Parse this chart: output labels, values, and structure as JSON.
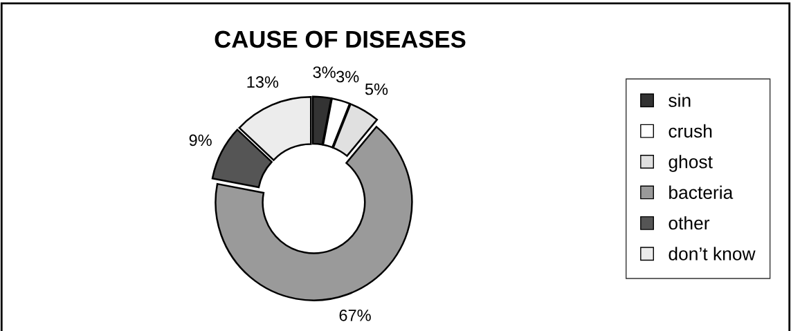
{
  "chart_data": {
    "type": "donut",
    "title": "CAUSE OF DISEASES",
    "categories": [
      "sin",
      "crush",
      "ghost",
      "bacteria",
      "other",
      "don’t know"
    ],
    "values": [
      3,
      3,
      5,
      67,
      9,
      13
    ],
    "value_labels": [
      "3%",
      "3%",
      "5%",
      "67%",
      "9%",
      "13%"
    ],
    "colors": [
      "#333333",
      "#ffffff",
      "#e0e0e0",
      "#9a9a9a",
      "#555555",
      "#ececec"
    ],
    "legend": "right"
  }
}
